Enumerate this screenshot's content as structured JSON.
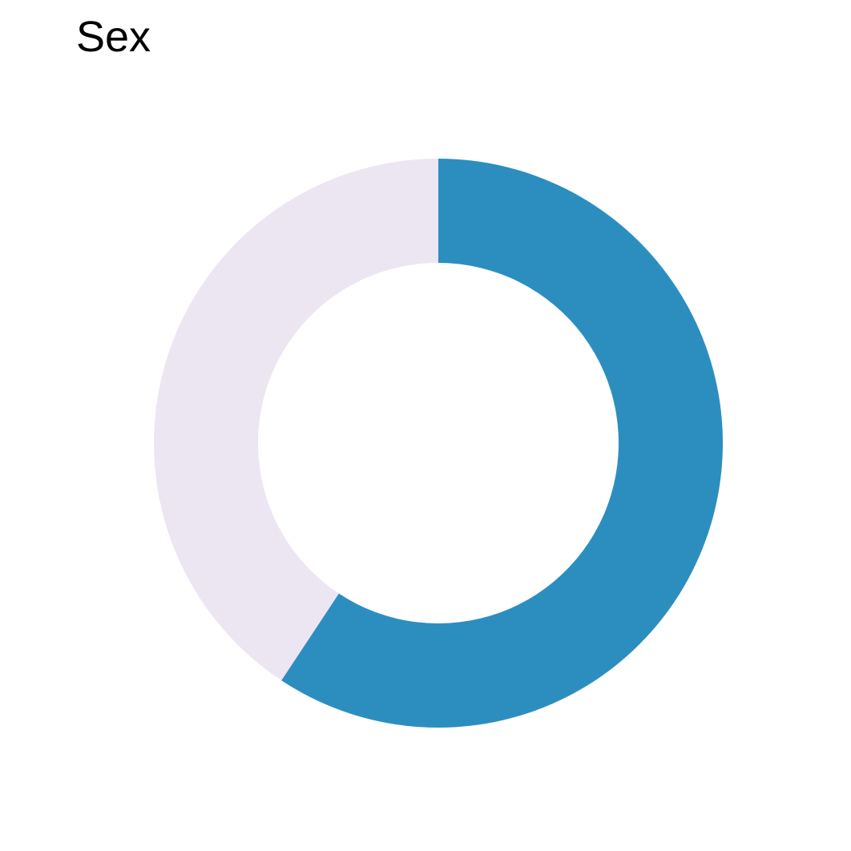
{
  "chart_data": {
    "type": "pie",
    "style": "donut",
    "title": "Sex",
    "start": "12 o'clock",
    "direction": "clockwise",
    "slices": [
      {
        "value": 59.3,
        "color": "#2c8ebf"
      },
      {
        "value": 40.7,
        "color": "#ece6f3"
      }
    ]
  }
}
